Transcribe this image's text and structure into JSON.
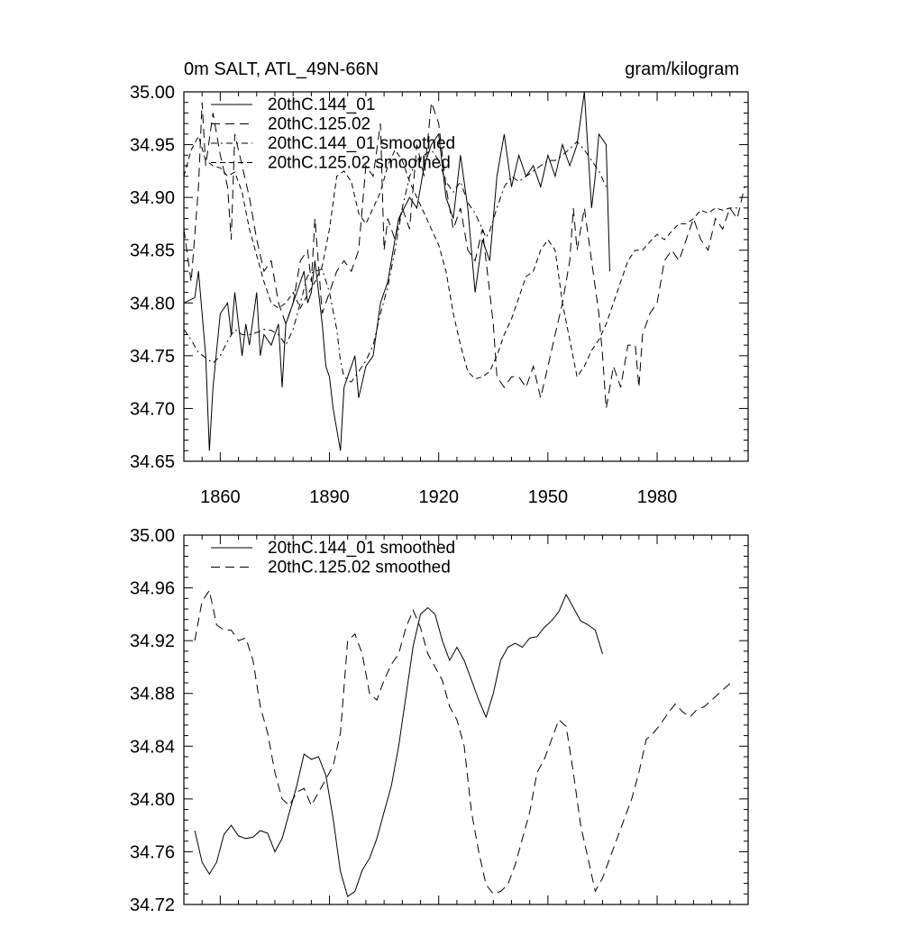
{
  "chart_data": [
    {
      "type": "line",
      "title": "0m SALT, ATL_49N-66N",
      "units": "gram/kilogram",
      "xlabel": "",
      "ylabel": "",
      "xlim": [
        1850,
        2005
      ],
      "ylim": [
        34.65,
        35.0
      ],
      "y_ticks": [
        35.0,
        34.95,
        34.9,
        34.85,
        34.8,
        34.75,
        34.7,
        34.65
      ],
      "y_tick_labels": [
        "35.00",
        "34.95",
        "34.90",
        "34.85",
        "34.80",
        "34.75",
        "34.70",
        "34.65"
      ],
      "x_ticks": [
        1860,
        1890,
        1920,
        1950,
        1980
      ],
      "x_tick_labels": [
        "1860",
        "1890",
        "1920",
        "1950",
        "1980"
      ],
      "legend_position": "top-left",
      "series": [
        {
          "name": "20thC.144_01",
          "style": "solid",
          "x": [
            1850,
            1853,
            1854,
            1856,
            1857,
            1858,
            1860,
            1862,
            1863,
            1864,
            1866,
            1867,
            1868,
            1870,
            1871,
            1872,
            1874,
            1876,
            1877,
            1878,
            1880,
            1882,
            1883,
            1884,
            1885,
            1886,
            1888,
            1889,
            1890,
            1891,
            1893,
            1894,
            1895,
            1897,
            1898,
            1900,
            1902,
            1904,
            1906,
            1908,
            1909,
            1912,
            1914,
            1916,
            1918,
            1920,
            1922,
            1924,
            1926,
            1928,
            1930,
            1932,
            1934,
            1936,
            1938,
            1940,
            1942,
            1944,
            1946,
            1948,
            1950,
            1952,
            1954,
            1956,
            1958,
            1960,
            1962,
            1963,
            1964,
            1966,
            1967
          ],
          "values": [
            34.8,
            34.805,
            34.83,
            34.75,
            34.66,
            34.72,
            34.79,
            34.8,
            34.77,
            34.81,
            34.75,
            34.78,
            34.76,
            34.81,
            34.75,
            34.77,
            34.76,
            34.78,
            34.72,
            34.78,
            34.8,
            34.82,
            34.83,
            34.8,
            34.81,
            34.84,
            34.78,
            34.74,
            34.73,
            34.7,
            34.66,
            34.72,
            34.73,
            34.75,
            34.71,
            34.74,
            34.75,
            34.8,
            34.82,
            34.86,
            34.88,
            34.9,
            34.89,
            34.93,
            34.95,
            34.96,
            34.9,
            34.88,
            34.94,
            34.89,
            34.81,
            34.86,
            34.84,
            34.92,
            34.96,
            34.91,
            34.94,
            34.92,
            34.93,
            34.91,
            34.94,
            34.92,
            34.95,
            34.93,
            34.95,
            35.0,
            34.89,
            34.92,
            34.96,
            34.95,
            34.83
          ]
        },
        {
          "name": "20thC.125.02",
          "style": "long-dash",
          "x": [
            1850,
            1852,
            1854,
            1855,
            1856,
            1858,
            1860,
            1862,
            1863,
            1864,
            1866,
            1868,
            1870,
            1872,
            1874,
            1876,
            1878,
            1880,
            1882,
            1884,
            1885,
            1886,
            1888,
            1890,
            1892,
            1894,
            1896,
            1898,
            1900,
            1902,
            1904,
            1905,
            1906,
            1908,
            1910,
            1912,
            1914,
            1916,
            1918,
            1920,
            1922,
            1924,
            1926,
            1928,
            1930,
            1932,
            1934,
            1935,
            1936,
            1938,
            1940,
            1942,
            1944,
            1946,
            1948,
            1950,
            1952,
            1954,
            1956,
            1957,
            1958,
            1960,
            1962,
            1964,
            1965,
            1966,
            1968,
            1970,
            1972,
            1974,
            1975,
            1976,
            1978,
            1980,
            1982,
            1984,
            1986,
            1988,
            1990,
            1992,
            1994,
            1996,
            1998,
            2000,
            2002,
            2004
          ],
          "values": [
            34.87,
            34.82,
            34.91,
            34.99,
            34.93,
            34.98,
            34.94,
            34.91,
            34.86,
            34.96,
            34.93,
            34.9,
            34.86,
            34.83,
            34.84,
            34.8,
            34.78,
            34.8,
            34.84,
            34.85,
            34.82,
            34.88,
            34.79,
            34.81,
            34.83,
            34.84,
            34.83,
            34.85,
            34.93,
            34.92,
            34.97,
            34.85,
            34.88,
            34.86,
            34.89,
            34.87,
            34.95,
            34.92,
            34.99,
            34.97,
            34.91,
            34.87,
            34.89,
            34.85,
            34.84,
            34.87,
            34.81,
            34.78,
            34.73,
            34.72,
            34.73,
            34.73,
            34.72,
            34.74,
            34.71,
            34.74,
            34.77,
            34.8,
            34.84,
            34.89,
            34.85,
            34.89,
            34.84,
            34.79,
            34.75,
            34.7,
            34.74,
            34.72,
            34.76,
            34.76,
            34.72,
            34.77,
            34.79,
            34.8,
            34.84,
            34.85,
            34.84,
            34.86,
            34.88,
            34.86,
            34.85,
            34.88,
            34.87,
            34.89,
            34.88,
            34.91
          ]
        },
        {
          "name": "20thC.144_01 smoothed",
          "style": "dash-dot",
          "x": [
            1850,
            1852,
            1854,
            1856,
            1858,
            1860,
            1862,
            1864,
            1866,
            1868,
            1870,
            1872,
            1874,
            1876,
            1878,
            1880,
            1882,
            1884,
            1886,
            1888,
            1890,
            1892,
            1893,
            1894,
            1896,
            1898,
            1900,
            1902,
            1904,
            1906,
            1908,
            1910,
            1912,
            1914,
            1916,
            1918,
            1920,
            1922,
            1924,
            1926,
            1928,
            1930,
            1932,
            1933,
            1934,
            1936,
            1938,
            1940,
            1942,
            1944,
            1946,
            1948,
            1950,
            1952,
            1954,
            1956,
            1958,
            1960,
            1962,
            1964,
            1966
          ],
          "values": [
            34.775,
            34.765,
            34.753,
            34.748,
            34.743,
            34.75,
            34.764,
            34.775,
            34.77,
            34.77,
            34.772,
            34.775,
            34.774,
            34.77,
            34.76,
            34.775,
            34.8,
            34.826,
            34.83,
            34.832,
            34.81,
            34.775,
            34.745,
            34.73,
            34.725,
            34.735,
            34.745,
            34.76,
            34.79,
            34.815,
            34.85,
            34.89,
            34.92,
            34.935,
            34.94,
            34.945,
            34.935,
            34.915,
            34.905,
            34.915,
            34.895,
            34.885,
            34.87,
            34.862,
            34.868,
            34.89,
            34.91,
            34.92,
            34.915,
            34.92,
            34.925,
            34.93,
            34.935,
            34.935,
            34.94,
            34.946,
            34.953,
            34.945,
            34.935,
            34.925,
            34.91
          ]
        },
        {
          "name": "20thC.125.02 smoothed",
          "style": "medium-dash",
          "x": [
            1850,
            1852,
            1854,
            1856,
            1858,
            1860,
            1862,
            1864,
            1866,
            1868,
            1870,
            1872,
            1874,
            1876,
            1878,
            1880,
            1882,
            1884,
            1886,
            1888,
            1890,
            1892,
            1894,
            1896,
            1898,
            1900,
            1902,
            1904,
            1906,
            1908,
            1910,
            1912,
            1914,
            1916,
            1918,
            1920,
            1922,
            1924,
            1926,
            1928,
            1930,
            1932,
            1934,
            1936,
            1938,
            1940,
            1942,
            1944,
            1946,
            1948,
            1950,
            1952,
            1954,
            1956,
            1958,
            1960,
            1962,
            1964,
            1966,
            1968,
            1970,
            1972,
            1974,
            1976,
            1978,
            1980,
            1982,
            1984,
            1986,
            1988,
            1990,
            1992,
            1994,
            1996,
            1998,
            2000,
            2002
          ],
          "values": [
            34.92,
            34.945,
            34.958,
            34.935,
            34.93,
            34.928,
            34.92,
            34.924,
            34.905,
            34.87,
            34.845,
            34.82,
            34.8,
            34.795,
            34.8,
            34.81,
            34.795,
            34.808,
            34.82,
            34.835,
            34.87,
            34.92,
            34.925,
            34.915,
            34.885,
            34.875,
            34.89,
            34.905,
            34.93,
            34.945,
            34.935,
            34.915,
            34.9,
            34.885,
            34.87,
            34.855,
            34.83,
            34.79,
            34.76,
            34.735,
            34.728,
            34.73,
            34.735,
            34.75,
            34.77,
            34.785,
            34.805,
            34.825,
            34.83,
            34.85,
            34.86,
            34.85,
            34.8,
            34.765,
            34.73,
            34.74,
            34.755,
            34.765,
            34.78,
            34.8,
            34.82,
            34.84,
            34.85,
            34.85,
            34.858,
            34.865,
            34.86,
            34.868,
            34.875,
            34.875,
            34.88,
            34.888,
            34.885,
            34.89,
            34.888,
            34.89,
            34.89
          ]
        }
      ]
    },
    {
      "type": "line",
      "title": "",
      "xlabel": "",
      "ylabel": "",
      "xlim": [
        1850,
        2005
      ],
      "ylim": [
        34.72,
        35.0
      ],
      "y_ticks": [
        35.0,
        34.96,
        34.92,
        34.88,
        34.84,
        34.8,
        34.76,
        34.72
      ],
      "y_tick_labels": [
        "35.00",
        "34.96",
        "34.92",
        "34.88",
        "34.84",
        "34.80",
        "34.76",
        "34.72"
      ],
      "x_ticks": [
        1860,
        1890,
        1920,
        1950,
        1980
      ],
      "legend_position": "top-left",
      "series": [
        {
          "name": "20thC.144_01 smoothed",
          "style": "solid",
          "x": [
            1853,
            1855,
            1857,
            1859,
            1861,
            1863,
            1865,
            1867,
            1869,
            1871,
            1873,
            1875,
            1877,
            1879,
            1881,
            1883,
            1885,
            1887,
            1889,
            1891,
            1893,
            1895,
            1897,
            1899,
            1901,
            1903,
            1905,
            1907,
            1909,
            1911,
            1913,
            1915,
            1917,
            1919,
            1921,
            1923,
            1925,
            1927,
            1929,
            1931,
            1933,
            1935,
            1937,
            1939,
            1941,
            1943,
            1945,
            1947,
            1949,
            1951,
            1953,
            1955,
            1957,
            1959,
            1961,
            1963,
            1965
          ],
          "values": [
            34.776,
            34.752,
            34.743,
            34.752,
            34.773,
            34.78,
            34.772,
            34.77,
            34.771,
            34.776,
            34.774,
            34.76,
            34.77,
            34.79,
            34.81,
            34.834,
            34.83,
            34.832,
            34.818,
            34.785,
            34.745,
            34.726,
            34.73,
            34.746,
            34.755,
            34.77,
            34.79,
            34.81,
            34.84,
            34.878,
            34.916,
            34.94,
            34.945,
            34.94,
            34.92,
            34.905,
            34.915,
            34.905,
            34.89,
            34.875,
            34.862,
            34.88,
            34.905,
            34.915,
            34.918,
            34.915,
            34.922,
            34.923,
            34.93,
            34.935,
            34.942,
            34.955,
            34.945,
            34.935,
            34.932,
            34.928,
            34.91
          ]
        },
        {
          "name": "20thC.125.02 smoothed",
          "style": "long-dash",
          "x": [
            1853,
            1855,
            1857,
            1859,
            1861,
            1863,
            1865,
            1867,
            1869,
            1871,
            1873,
            1875,
            1877,
            1879,
            1881,
            1883,
            1885,
            1887,
            1889,
            1891,
            1893,
            1895,
            1897,
            1899,
            1901,
            1903,
            1905,
            1907,
            1909,
            1911,
            1913,
            1915,
            1917,
            1919,
            1921,
            1923,
            1925,
            1927,
            1929,
            1931,
            1933,
            1935,
            1937,
            1939,
            1941,
            1943,
            1945,
            1947,
            1949,
            1951,
            1953,
            1955,
            1957,
            1959,
            1961,
            1963,
            1965,
            1967,
            1969,
            1971,
            1973,
            1975,
            1977,
            1979,
            1981,
            1983,
            1985,
            1987,
            1989,
            1991,
            1993,
            1995,
            1997,
            1999,
            2001
          ],
          "values": [
            34.92,
            34.95,
            34.958,
            34.932,
            34.928,
            34.928,
            34.92,
            34.922,
            34.905,
            34.87,
            34.85,
            34.82,
            34.8,
            34.795,
            34.805,
            34.808,
            34.795,
            34.805,
            34.815,
            34.825,
            34.85,
            34.92,
            34.925,
            34.91,
            34.88,
            34.875,
            34.89,
            34.902,
            34.91,
            34.93,
            34.943,
            34.93,
            34.91,
            34.9,
            34.89,
            34.87,
            34.86,
            34.84,
            34.79,
            34.76,
            34.735,
            34.728,
            34.73,
            34.735,
            34.75,
            34.77,
            34.79,
            34.82,
            34.83,
            34.845,
            34.86,
            34.855,
            34.82,
            34.78,
            34.755,
            34.73,
            34.74,
            34.755,
            34.77,
            34.785,
            34.8,
            34.82,
            34.845,
            34.85,
            34.857,
            34.865,
            34.872,
            34.866,
            34.862,
            34.868,
            34.87,
            34.875,
            34.88,
            34.885,
            34.89
          ]
        }
      ]
    }
  ]
}
